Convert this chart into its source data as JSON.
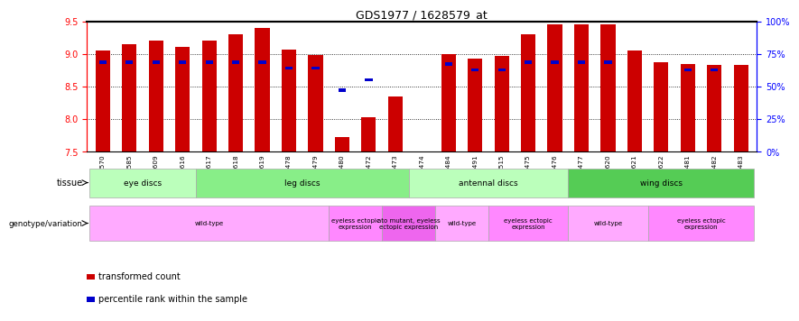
{
  "title": "GDS1977 / 1628579_at",
  "samples": [
    "GSM91570",
    "GSM91585",
    "GSM91609",
    "GSM91616",
    "GSM91617",
    "GSM91618",
    "GSM91619",
    "GSM91478",
    "GSM91479",
    "GSM91480",
    "GSM91472",
    "GSM91473",
    "GSM91474",
    "GSM91484",
    "GSM91491",
    "GSM91515",
    "GSM91475",
    "GSM91476",
    "GSM91477",
    "GSM91620",
    "GSM91621",
    "GSM91622",
    "GSM91481",
    "GSM91482",
    "GSM91483"
  ],
  "red_values": [
    9.05,
    9.15,
    9.2,
    9.1,
    9.2,
    9.3,
    9.4,
    9.06,
    8.98,
    7.72,
    8.03,
    8.35,
    7.5,
    9.0,
    8.93,
    8.97,
    9.3,
    9.45,
    9.45,
    9.45,
    9.05,
    8.87,
    8.84,
    8.83,
    8.83
  ],
  "blue_values": [
    8.87,
    8.87,
    8.87,
    8.87,
    8.87,
    8.87,
    8.87,
    8.78,
    8.78,
    8.44,
    8.6,
    null,
    null,
    8.84,
    8.75,
    8.75,
    8.87,
    8.87,
    8.87,
    8.87,
    null,
    null,
    8.75,
    8.75,
    null
  ],
  "y_min": 7.5,
  "y_max": 9.5,
  "y_ticks": [
    7.5,
    8.0,
    8.5,
    9.0,
    9.5
  ],
  "y_right_ticks": [
    0,
    25,
    50,
    75,
    100
  ],
  "y_right_labels": [
    "0%",
    "25%",
    "50%",
    "75%",
    "100%"
  ],
  "bar_color": "#cc0000",
  "blue_color": "#0000cc",
  "background_color": "#ffffff",
  "tissue_groups": [
    {
      "label": "eye discs",
      "start": 0,
      "end": 4,
      "color": "#bbffbb"
    },
    {
      "label": "leg discs",
      "start": 4,
      "end": 12,
      "color": "#88ee88"
    },
    {
      "label": "antennal discs",
      "start": 12,
      "end": 18,
      "color": "#bbffbb"
    },
    {
      "label": "wing discs",
      "start": 18,
      "end": 25,
      "color": "#55cc55"
    }
  ],
  "genotype_groups": [
    {
      "label": "wild-type",
      "start": 0,
      "end": 9,
      "color": "#ffaaff"
    },
    {
      "label": "eyeless ectopic\nexpression",
      "start": 9,
      "end": 11,
      "color": "#ff88ff"
    },
    {
      "label": "ato mutant, eyeless\nectopic expression",
      "start": 11,
      "end": 13,
      "color": "#ee66ee"
    },
    {
      "label": "wild-type",
      "start": 13,
      "end": 15,
      "color": "#ffaaff"
    },
    {
      "label": "eyeless ectopic\nexpression",
      "start": 15,
      "end": 18,
      "color": "#ff88ff"
    },
    {
      "label": "wild-type",
      "start": 18,
      "end": 21,
      "color": "#ffaaff"
    },
    {
      "label": "eyeless ectopic\nexpression",
      "start": 21,
      "end": 25,
      "color": "#ff88ff"
    }
  ]
}
